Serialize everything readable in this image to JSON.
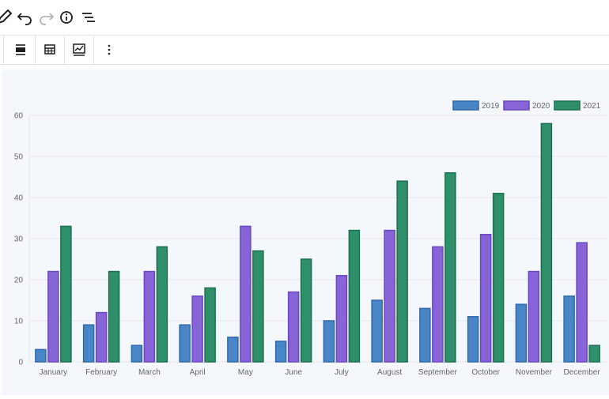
{
  "toolbar": {
    "icons": [
      "pencil-icon",
      "undo-icon",
      "redo-icon",
      "info-icon",
      "list-view-icon"
    ]
  },
  "block_toolbar": {
    "icons": [
      "align-icon",
      "table-icon",
      "chart-edit-icon",
      "more-options-icon"
    ]
  },
  "colors": {
    "series_2019": "#4a86c5",
    "series_2020": "#8765d6",
    "series_2021": "#2f8f6a",
    "grid": "#e3e6ea",
    "tick_text": "#666666",
    "background": "#f4f7fc"
  },
  "chart_data": {
    "type": "bar",
    "categories": [
      "January",
      "February",
      "March",
      "April",
      "May",
      "June",
      "July",
      "August",
      "September",
      "October",
      "November",
      "December"
    ],
    "series": [
      {
        "name": "2019",
        "values": [
          3,
          9,
          4,
          9,
          6,
          5,
          10,
          15,
          13,
          11,
          14,
          16
        ]
      },
      {
        "name": "2020",
        "values": [
          22,
          12,
          22,
          16,
          33,
          17,
          21,
          32,
          28,
          31,
          22,
          29
        ]
      },
      {
        "name": "2021",
        "values": [
          33,
          22,
          28,
          18,
          27,
          25,
          32,
          44,
          46,
          41,
          58,
          4
        ]
      }
    ],
    "ylim": [
      0,
      60
    ],
    "yticks": [
      0,
      10,
      20,
      30,
      40,
      50,
      60
    ],
    "grid": true,
    "legend_position": "top-right",
    "title": "",
    "xlabel": "",
    "ylabel": ""
  }
}
